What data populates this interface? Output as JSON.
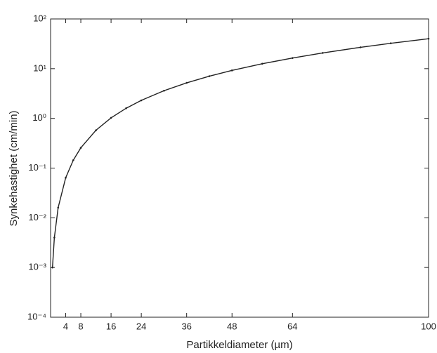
{
  "chart_data": {
    "type": "line",
    "xlabel": "Partikkeldiameter (µm)",
    "ylabel": "Synkehastighet (cm/min)",
    "x": [
      0.5,
      1,
      2,
      4,
      6,
      8,
      12,
      16,
      20,
      24,
      30,
      36,
      42,
      48,
      56,
      64,
      72,
      82,
      90,
      100
    ],
    "series": [
      {
        "name": "Synkehastighet",
        "color": "#222222",
        "values": [
          0.001,
          0.004,
          0.016,
          0.064,
          0.144,
          0.256,
          0.576,
          1.024,
          1.6,
          2.304,
          3.6,
          5.184,
          7.056,
          9.216,
          12.544,
          16.384,
          20.736,
          26.896,
          32.4,
          40
        ]
      }
    ],
    "xlim": [
      0,
      100
    ],
    "xticks": [
      4,
      8,
      16,
      24,
      36,
      48,
      64,
      100
    ],
    "ylim": [
      0.0001,
      100
    ],
    "yscale": "log",
    "yticks": [
      {
        "value": 0.0001,
        "label": "10⁻⁴"
      },
      {
        "value": 0.001,
        "label": "10⁻³"
      },
      {
        "value": 0.01,
        "label": "10⁻²"
      },
      {
        "value": 0.1,
        "label": "10⁻¹"
      },
      {
        "value": 1,
        "label": "10⁰"
      },
      {
        "value": 10,
        "label": "10¹"
      },
      {
        "value": 100,
        "label": "10²"
      }
    ]
  }
}
